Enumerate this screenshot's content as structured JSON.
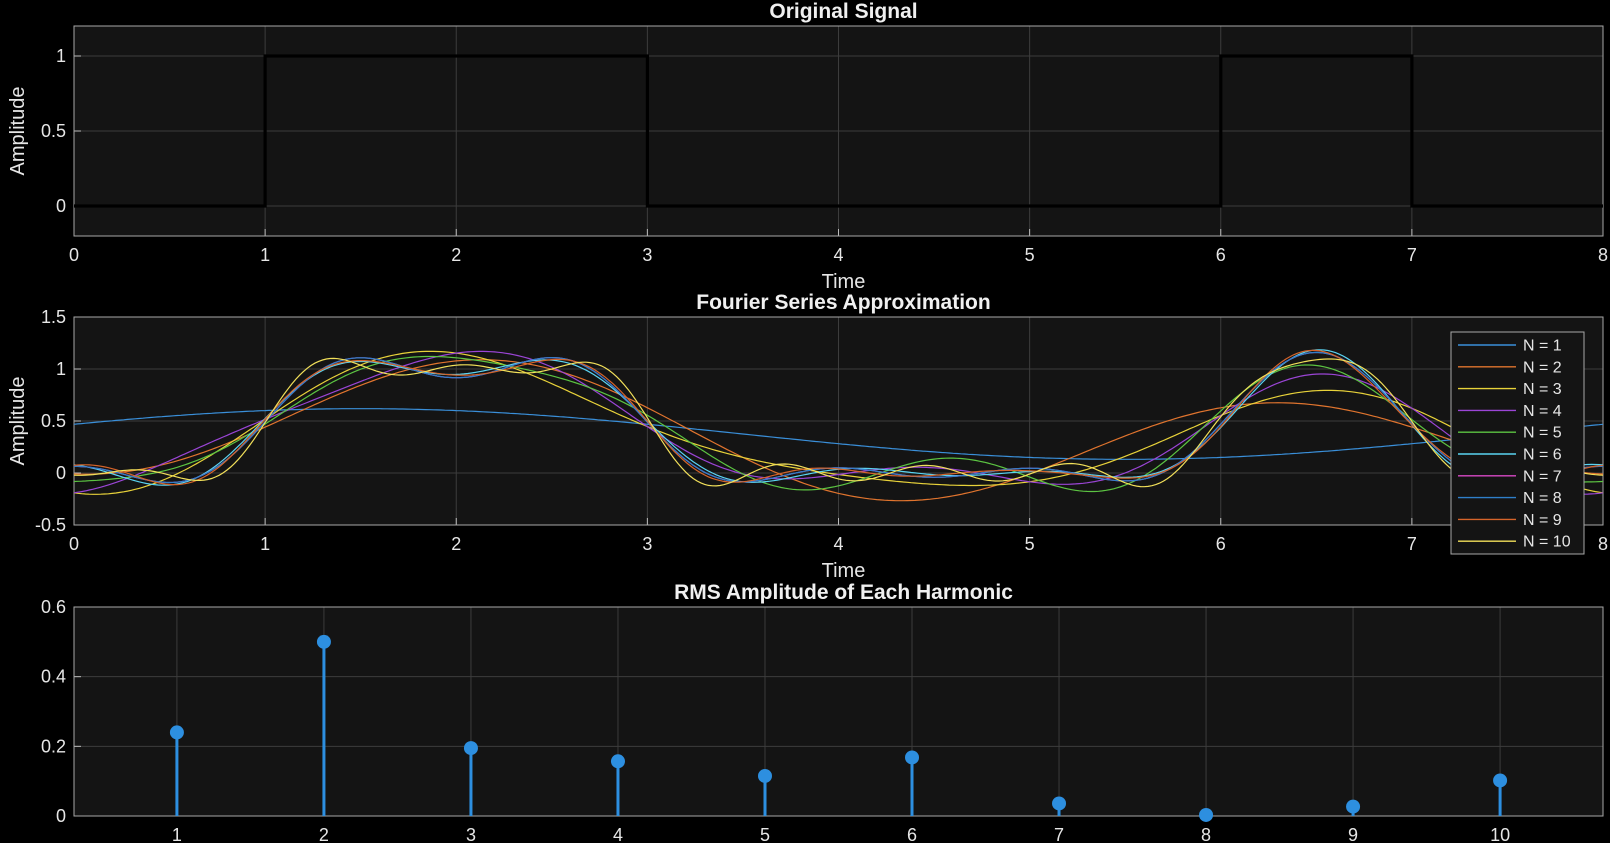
{
  "chart_data": [
    {
      "type": "line",
      "title": "Original Signal",
      "xlabel": "Time",
      "ylabel": "Amplitude",
      "xlim": [
        0,
        8
      ],
      "ylim": [
        -0.2,
        1.2
      ],
      "xticks": [
        "0",
        "1",
        "2",
        "3",
        "4",
        "5",
        "6",
        "7",
        "8"
      ],
      "yticks": [
        "0",
        "0.5",
        "1"
      ],
      "grid": true,
      "series": [
        {
          "color": "#000000",
          "x": [
            0,
            1,
            1,
            3,
            3,
            6,
            6,
            7,
            7,
            8
          ],
          "y": [
            0,
            0,
            1,
            1,
            0,
            0,
            1,
            1,
            0,
            0
          ]
        }
      ]
    },
    {
      "type": "line",
      "title": "Fourier Series Approximation",
      "xlabel": "Time",
      "ylabel": "Amplitude",
      "xlim": [
        0,
        8
      ],
      "ylim": [
        -0.5,
        1.5
      ],
      "xticks": [
        "0",
        "1",
        "2",
        "3",
        "4",
        "5",
        "6",
        "7",
        "8"
      ],
      "yticks": [
        "-0.5",
        "0",
        "0.5",
        "1",
        "1.5"
      ],
      "grid": true,
      "legend": "top-right",
      "series": [
        {
          "name": "N = 1",
          "color": "#3a8fd9"
        },
        {
          "name": "N = 2",
          "color": "#e0742e"
        },
        {
          "name": "N = 3",
          "color": "#e8d23a"
        },
        {
          "name": "N = 4",
          "color": "#9b45d6"
        },
        {
          "name": "N = 5",
          "color": "#5cc442"
        },
        {
          "name": "N = 6",
          "color": "#5ad3f2"
        },
        {
          "name": "N = 7",
          "color": "#d948c6"
        },
        {
          "name": "N = 8",
          "color": "#2f7fc9"
        },
        {
          "name": "N = 9",
          "color": "#d5642a"
        },
        {
          "name": "N = 10",
          "color": "#f2e05a"
        }
      ]
    },
    {
      "type": "stem",
      "title": "RMS Amplitude of Each Harmonic",
      "xlim": [
        0.3,
        10.7
      ],
      "ylim": [
        0,
        0.6
      ],
      "xticks": [
        "1",
        "2",
        "3",
        "4",
        "5",
        "6",
        "7",
        "8",
        "9",
        "10"
      ],
      "yticks": [
        "0",
        "0.2",
        "0.4",
        "0.6"
      ],
      "grid": true,
      "color": "#2d8fe0",
      "x": [
        1,
        2,
        3,
        4,
        5,
        6,
        7,
        8,
        9,
        10
      ],
      "values": [
        0.24,
        0.5,
        0.195,
        0.157,
        0.115,
        0.168,
        0.036,
        0.003,
        0.027,
        0.102
      ]
    }
  ]
}
